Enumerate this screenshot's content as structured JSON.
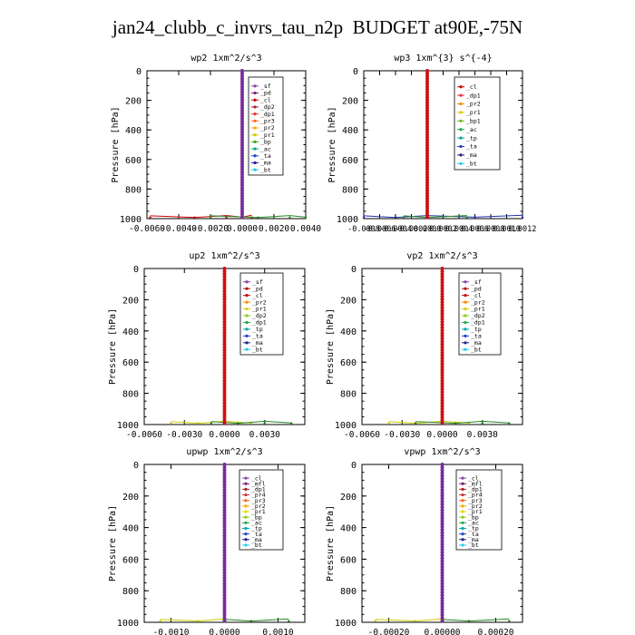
{
  "title": "jan24_clubb_c_invrs_tau_n2p  BUDGET at90E,-75N",
  "chart_data": [
    {
      "type": "line",
      "title": "wp2   1xm^2/s^3",
      "ylabel": "Pressure [hPa]",
      "ylim": [
        1000,
        0
      ],
      "xlim": [
        -0.006,
        0.004
      ],
      "xticks": [
        -0.006,
        -0.004,
        -0.002,
        0.0,
        0.002,
        0.004
      ],
      "xtick_labels": [
        "-0.0060",
        "-0.0040",
        "-0.0020",
        "0.0000",
        "0.0020",
        "0.0040"
      ],
      "yticks": [
        0,
        200,
        400,
        600,
        800,
        1000
      ],
      "legend": [
        "_sf",
        "_pd",
        "_cl",
        "_dp2",
        "_dp1",
        "_pr3",
        "_pr2",
        "_pr1",
        "_bp",
        "_ac",
        "_ta",
        "_ma",
        "_bt"
      ],
      "legend_colors": [
        "#8844aa",
        "#7a1f7a",
        "#cc0000",
        "#aa2222",
        "#ee3333",
        "#ff6622",
        "#ffaa00",
        "#cccc00",
        "#44aa22",
        "#00aa88",
        "#2244cc",
        "#2222aa",
        "#22ccee"
      ],
      "main_line": {
        "color": "#7a2a9a",
        "x": 0.0
      },
      "near_surface": [
        {
          "color": "#cc0000",
          "x": [
            -0.0058,
            -0.003,
            -0.001,
            0.0,
            0.0006
          ]
        },
        {
          "color": "#228822",
          "x": [
            -0.002,
            0.001,
            0.003,
            0.004
          ]
        }
      ]
    },
    {
      "type": "line",
      "title": "wp3   1xm^{3} s^{-4}",
      "ylabel": "Pressure [hPa]",
      "ylim": [
        1000,
        0
      ],
      "xlim": [
        -0.0008,
        0.0012
      ],
      "xticks": [
        -0.0008,
        -0.0006,
        -0.0004,
        -0.0002,
        0.0,
        0.0002,
        0.0004,
        0.0006,
        0.0008,
        0.001,
        0.0012
      ],
      "xtick_labels": [
        "-0.0008",
        "-0.0006",
        "-0.0004",
        "-0.0002",
        "0.0000",
        "0.0002",
        "0.0004",
        "0.0006",
        "0.0008",
        "0.0010",
        "0.0012"
      ],
      "yticks": [
        0,
        200,
        400,
        600,
        800,
        1000
      ],
      "legend": [
        "_cl",
        "_dp1",
        "_pr2",
        "_pr1",
        "_bp1",
        "_ac",
        "_tp",
        "_ta",
        "_ma",
        "_bt"
      ],
      "legend_colors": [
        "#cc0000",
        "#ee3333",
        "#ff8800",
        "#ddcc00",
        "#66bb22",
        "#22aa44",
        "#00aaaa",
        "#2244cc",
        "#222288",
        "#22ccee"
      ],
      "main_line": {
        "color": "#cc1111",
        "x": 0.0
      },
      "near_surface": [
        {
          "color": "#2233aa",
          "x": [
            -0.0008,
            -0.0004,
            0.0,
            0.0006,
            0.0012
          ]
        },
        {
          "color": "#228822",
          "x": [
            -0.0003,
            0.0,
            0.0005
          ]
        }
      ]
    },
    {
      "type": "line",
      "title": "up2   1xm^2/s^3",
      "ylabel": "Pressure [hPa]",
      "ylim": [
        1000,
        0
      ],
      "xlim": [
        -0.006,
        0.006
      ],
      "xticks": [
        -0.006,
        -0.003,
        0.0,
        0.003
      ],
      "xtick_labels": [
        "-0.0060",
        "-0.0030",
        "0.0000",
        "0.0030"
      ],
      "yticks": [
        0,
        200,
        400,
        600,
        800,
        1000
      ],
      "legend": [
        "_sf",
        "_pd",
        "_cl",
        "_pr2",
        "_pr1",
        "_dp2",
        "_dp1",
        "_tp",
        "_ta",
        "_ma",
        "_bt"
      ],
      "legend_colors": [
        "#8844aa",
        "#aa1111",
        "#cc0000",
        "#ff8800",
        "#ddcc00",
        "#88cc22",
        "#22aa44",
        "#00aaaa",
        "#2244cc",
        "#222288",
        "#22ccee"
      ],
      "main_line": {
        "color": "#cc1111",
        "x": 0.0
      },
      "near_surface": [
        {
          "color": "#cccc00",
          "x": [
            -0.004,
            -0.002,
            0.0,
            0.002
          ]
        },
        {
          "color": "#228822",
          "x": [
            -0.001,
            0.001,
            0.003,
            0.005
          ]
        }
      ]
    },
    {
      "type": "line",
      "title": "vp2   1xm^2/s^3",
      "ylabel": "Pressure [hPa]",
      "ylim": [
        1000,
        0
      ],
      "xlim": [
        -0.006,
        0.006
      ],
      "xticks": [
        -0.006,
        -0.003,
        0.0,
        0.003
      ],
      "xtick_labels": [
        "-0.0060",
        "-0.0030",
        "0.0000",
        "0.0030"
      ],
      "yticks": [
        0,
        200,
        400,
        600,
        800,
        1000
      ],
      "legend": [
        "_sf",
        "_pd",
        "_cl",
        "_pr2",
        "_pr1",
        "_dp2",
        "_dp1",
        "_tp",
        "_ta",
        "_ma",
        "_bt"
      ],
      "legend_colors": [
        "#8844aa",
        "#aa1111",
        "#cc0000",
        "#ff8800",
        "#ddcc00",
        "#88cc22",
        "#22aa44",
        "#00aaaa",
        "#2244cc",
        "#222288",
        "#22ccee"
      ],
      "main_line": {
        "color": "#cc1111",
        "x": 0.0
      },
      "near_surface": [
        {
          "color": "#cccc00",
          "x": [
            -0.004,
            -0.002,
            0.0,
            0.002
          ]
        },
        {
          "color": "#228822",
          "x": [
            -0.002,
            0.001,
            0.003,
            0.005
          ]
        }
      ]
    },
    {
      "type": "line",
      "title": "upwp   1xm^2/s^3",
      "ylabel": "Pressure [hPa]",
      "ylim": [
        1000,
        0
      ],
      "xlim": [
        -0.0015,
        0.0015
      ],
      "xticks": [
        -0.001,
        0.0,
        0.001
      ],
      "xtick_labels": [
        "-0.0010",
        "0.0000",
        "0.0010"
      ],
      "yticks": [
        0,
        200,
        400,
        600,
        800,
        1000
      ],
      "legend": [
        "_cl",
        "_mfl",
        "_dp1",
        "_pr4",
        "_pr3",
        "_pr2",
        "_pr1",
        "_bp",
        "_ac",
        "_tp",
        "_ta",
        "_ma",
        "_bt"
      ],
      "legend_colors": [
        "#8844aa",
        "#7a1f7a",
        "#aa2222",
        "#cc3333",
        "#ff6622",
        "#ffaa00",
        "#dddd00",
        "#88cc22",
        "#22aa44",
        "#00aaaa",
        "#2244cc",
        "#222288",
        "#22ccee"
      ],
      "main_line": {
        "color": "#7a2a9a",
        "x": 0.0
      },
      "near_surface": [
        {
          "color": "#cccc00",
          "x": [
            -0.0012,
            -0.0005,
            0.0
          ]
        },
        {
          "color": "#228822",
          "x": [
            0.0,
            0.0005,
            0.0012
          ]
        }
      ]
    },
    {
      "type": "line",
      "title": "vpwp   1xm^2/s^3",
      "ylabel": "Pressure [hPa]",
      "ylim": [
        1000,
        0
      ],
      "xlim": [
        -0.0003,
        0.0003
      ],
      "xticks": [
        -0.0002,
        0.0,
        0.0002
      ],
      "xtick_labels": [
        "-0.00020",
        "0.00000",
        "0.00020"
      ],
      "yticks": [
        0,
        200,
        400,
        600,
        800,
        1000
      ],
      "legend": [
        "_cl",
        "_mfl",
        "_dp1",
        "_pr4",
        "_pr3",
        "_pr2",
        "_pr1",
        "_bp",
        "_ac",
        "_tp",
        "_ta",
        "_ma",
        "_bt"
      ],
      "legend_colors": [
        "#8844aa",
        "#7a1f7a",
        "#aa2222",
        "#cc3333",
        "#ff6622",
        "#ffaa00",
        "#dddd00",
        "#88cc22",
        "#22aa44",
        "#00aaaa",
        "#2244cc",
        "#222288",
        "#22ccee"
      ],
      "main_line": {
        "color": "#7a2a9a",
        "x": 0.0
      },
      "near_surface": [
        {
          "color": "#cccc00",
          "x": [
            -0.00025,
            -0.0001,
            0.0
          ]
        },
        {
          "color": "#228822",
          "x": [
            0.0,
            0.0001,
            0.00025
          ]
        }
      ]
    }
  ]
}
